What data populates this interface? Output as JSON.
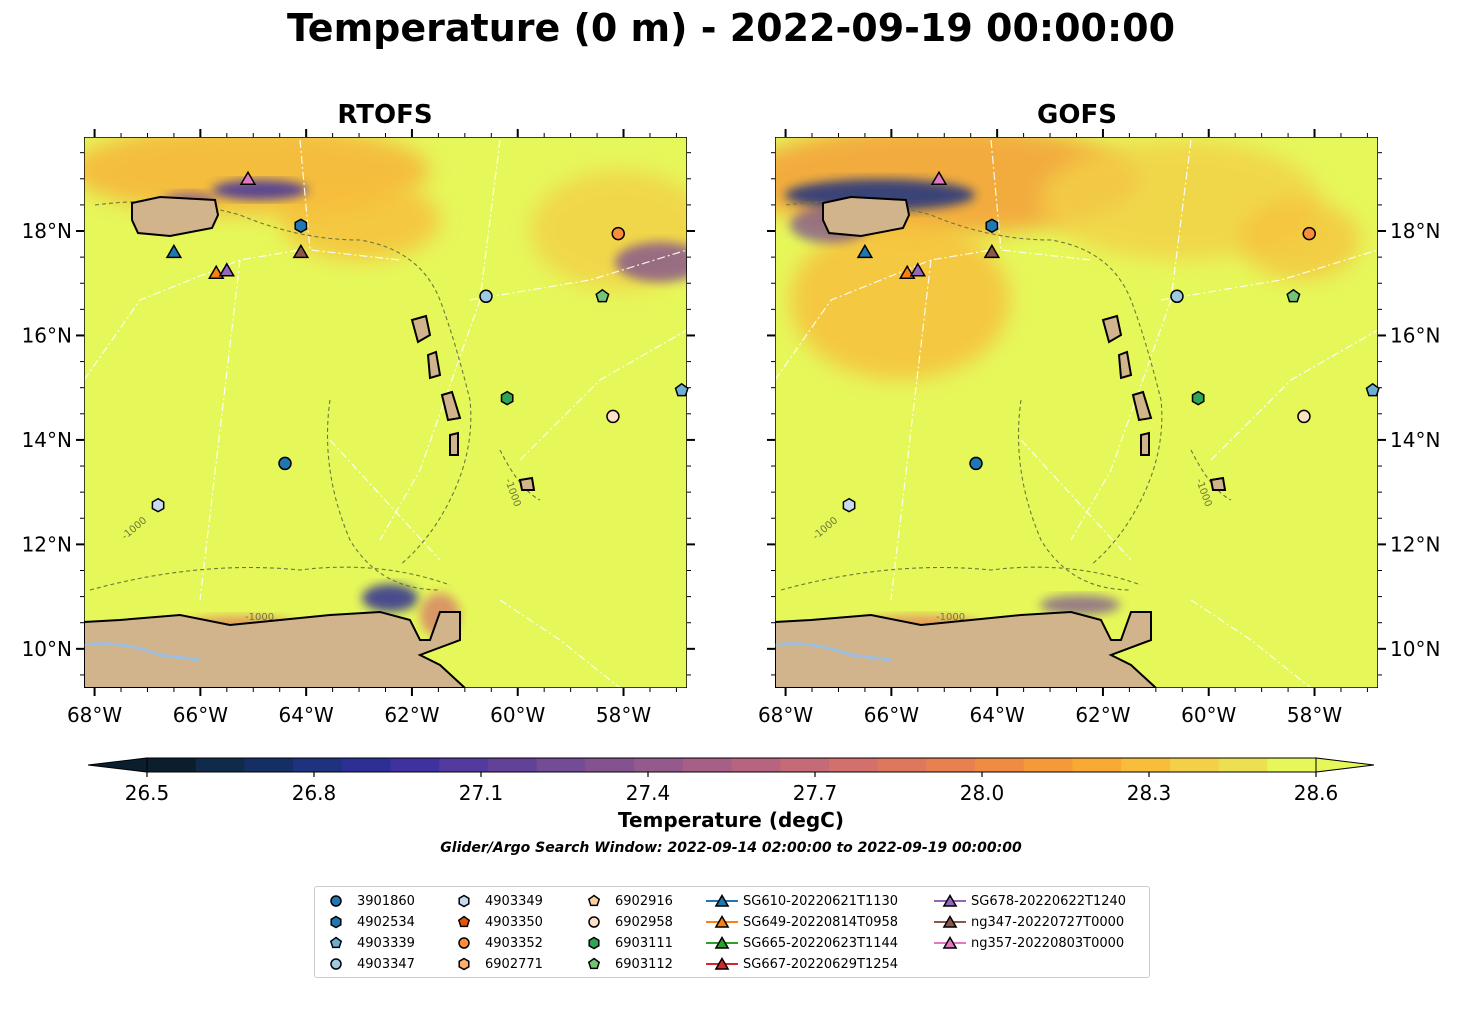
{
  "title": "Temperature (0 m) - 2022-09-19 00:00:00",
  "panels": [
    {
      "title": "RTOFS"
    },
    {
      "title": "GOFS"
    }
  ],
  "map": {
    "lon_range": [
      -68.2,
      -56.8
    ],
    "lat_range": [
      9.25,
      19.8
    ],
    "lon_ticks": [
      "68°W",
      "66°W",
      "64°W",
      "62°W",
      "60°W",
      "58°W"
    ],
    "lat_ticks": [
      "10°N",
      "12°N",
      "14°N",
      "16°N",
      "18°N"
    ],
    "contour_label": "-1000",
    "colors": {
      "land": "#d2b48c",
      "sea_base": "#e6f75a",
      "water_body": "#9fbfdf"
    }
  },
  "colorbar": {
    "label": "Temperature (degC)",
    "min": 26.5,
    "max": 28.6,
    "ticks": [
      "26.5",
      "26.8",
      "27.1",
      "27.4",
      "27.7",
      "28.0",
      "28.3",
      "28.6"
    ],
    "colors": [
      "#0b1e2e",
      "#0f2a4a",
      "#152f66",
      "#1f3280",
      "#2d2f94",
      "#3f32a0",
      "#523aa0",
      "#624299",
      "#744c95",
      "#84528f",
      "#955a8c",
      "#a75f87",
      "#b76480",
      "#c56a77",
      "#d3706c",
      "#df775f",
      "#e9804f",
      "#f18b42",
      "#f69a39",
      "#f9aa35",
      "#f8bd3a",
      "#f3d047",
      "#ecdf52",
      "#e6f75a"
    ]
  },
  "search_window": "Glider/Argo Search Window: 2022-09-14 02:00:00 to 2022-09-19 00:00:00",
  "platforms": [
    {
      "name": "3901860",
      "marker": "circle",
      "color": "#1f77b4",
      "lon": -64.4,
      "lat": 13.55
    },
    {
      "name": "4902534",
      "marker": "hexagon",
      "color": "#1f77b4",
      "lon": -64.1,
      "lat": 18.1
    },
    {
      "name": "4903339",
      "marker": "pentagon",
      "color": "#6baed6",
      "lon": -56.9,
      "lat": 14.95
    },
    {
      "name": "4903347",
      "marker": "circle",
      "color": "#9ecae1",
      "lon": -60.6,
      "lat": 16.75
    },
    {
      "name": "4903349",
      "marker": "hexagon",
      "color": "#c6dbef",
      "lon": -66.8,
      "lat": 12.75
    },
    {
      "name": "4903350",
      "marker": "pentagon",
      "color": "#e6550d",
      "lon": null,
      "lat": null
    },
    {
      "name": "4903352",
      "marker": "circle",
      "color": "#fd8d3c",
      "lon": -58.1,
      "lat": 17.95
    },
    {
      "name": "6902771",
      "marker": "hexagon",
      "color": "#fdae6b",
      "lon": null,
      "lat": null
    },
    {
      "name": "6902916",
      "marker": "pentagon",
      "color": "#fdd0a2",
      "lon": null,
      "lat": null
    },
    {
      "name": "6902958",
      "marker": "circle",
      "color": "#fde0c5",
      "lon": -58.2,
      "lat": 14.45
    },
    {
      "name": "6903111",
      "marker": "hexagon",
      "color": "#31a354",
      "lon": -60.2,
      "lat": 14.8
    },
    {
      "name": "6903112",
      "marker": "pentagon",
      "color": "#74c476",
      "lon": -58.4,
      "lat": 16.75
    }
  ],
  "gliders": [
    {
      "name": "SG610-20220621T1130",
      "color": "#1f77b4",
      "lon": -66.5,
      "lat": 17.6
    },
    {
      "name": "SG649-20220814T0958",
      "color": "#ff7f0e",
      "lon": -65.7,
      "lat": 17.2
    },
    {
      "name": "SG665-20220623T1144",
      "color": "#2ca02c",
      "lon": null,
      "lat": null
    },
    {
      "name": "SG667-20220629T1254",
      "color": "#d62728",
      "lon": null,
      "lat": null
    },
    {
      "name": "SG678-20220622T1240",
      "color": "#9467bd",
      "lon": -65.5,
      "lat": 17.25
    },
    {
      "name": "ng347-20220727T0000",
      "color": "#8c564b",
      "lon": -64.1,
      "lat": 17.6
    },
    {
      "name": "ng357-20220803T0000",
      "color": "#e377c2",
      "lon": -65.1,
      "lat": 19.0
    }
  ]
}
